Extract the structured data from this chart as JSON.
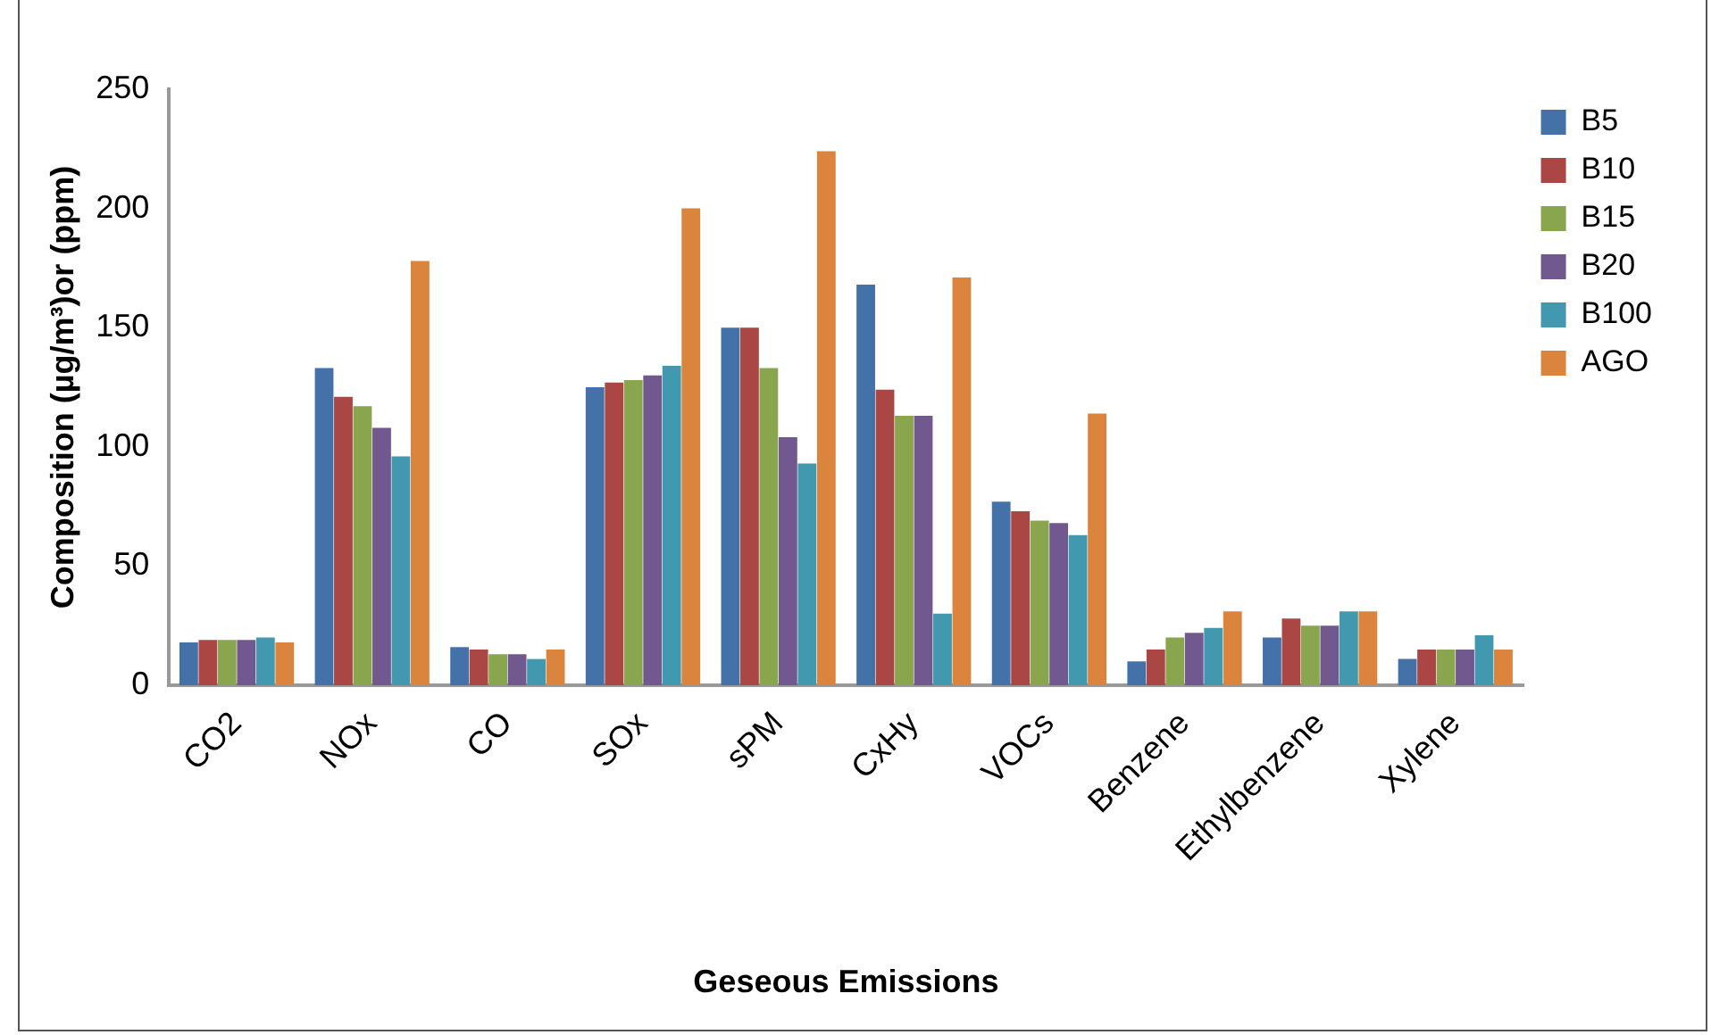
{
  "chart_data": {
    "type": "bar",
    "xlabel": "Geseous Emissions",
    "ylabel": "Composition (µg/m³)or (ppm)",
    "categories": [
      "CO2",
      "NOx",
      "CO",
      "SOx",
      "sPM",
      "CxHy",
      "VOCs",
      "Benzene",
      "Ethylbenzene",
      "Xylene"
    ],
    "series": [
      {
        "name": "B5",
        "color": "#4472a8",
        "values": [
          18,
          133,
          16,
          125,
          150,
          168,
          77,
          10,
          20,
          11
        ]
      },
      {
        "name": "B10",
        "color": "#aa4643",
        "values": [
          19,
          121,
          15,
          127,
          150,
          124,
          73,
          15,
          28,
          15
        ]
      },
      {
        "name": "B15",
        "color": "#89a54e",
        "values": [
          19,
          117,
          13,
          128,
          133,
          113,
          69,
          20,
          25,
          15
        ]
      },
      {
        "name": "B20",
        "color": "#71588f",
        "values": [
          19,
          108,
          13,
          130,
          104,
          113,
          68,
          22,
          25,
          15
        ]
      },
      {
        "name": "B100",
        "color": "#4198af",
        "values": [
          20,
          96,
          11,
          134,
          93,
          30,
          63,
          24,
          31,
          21
        ]
      },
      {
        "name": "AGO",
        "color": "#db843d",
        "values": [
          18,
          178,
          15,
          200,
          224,
          171,
          114,
          31,
          31,
          15
        ]
      }
    ],
    "ylim": [
      0,
      250
    ],
    "yticks": [
      0,
      50,
      100,
      150,
      200,
      250
    ],
    "grid": false,
    "legend": "top right"
  }
}
